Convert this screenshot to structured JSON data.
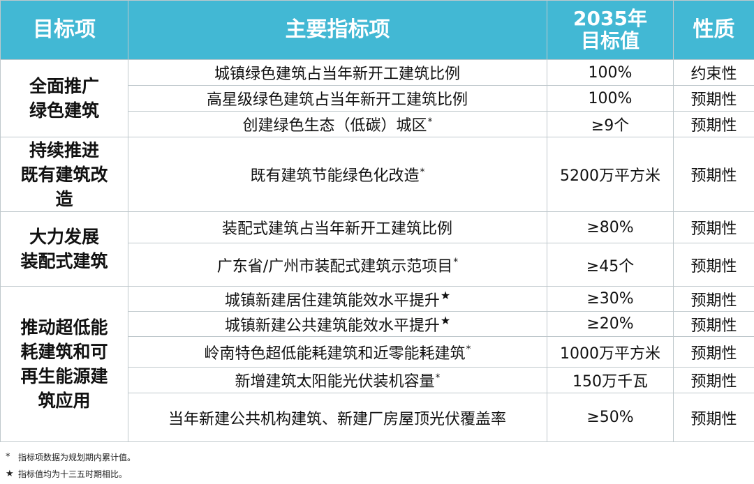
{
  "header": {
    "col1": "目标项",
    "col2": "主要指标项",
    "col3_line1": "2035年",
    "col3_line2": "目标值",
    "col4": "性质"
  },
  "groups": [
    {
      "category_lines": [
        "全面推广",
        "绿色建筑"
      ],
      "rows": [
        {
          "indicator": "城镇绿色建筑占当年新开工建筑比例",
          "mark": "",
          "value": "100%",
          "nature": "约束性"
        },
        {
          "indicator": "高星级绿色建筑占当年新开工建筑比例",
          "mark": "",
          "value": "100%",
          "nature": "预期性"
        },
        {
          "indicator": "创建绿色生态（低碳）城区",
          "mark": "*",
          "value": "≥9个",
          "nature": "预期性"
        }
      ]
    },
    {
      "category_lines": [
        "持续推进",
        "既有建筑改",
        "造"
      ],
      "rows": [
        {
          "indicator": "既有建筑节能绿色化改造",
          "mark": "*",
          "value": "5200万平方米",
          "nature": "预期性"
        }
      ]
    },
    {
      "category_lines": [
        "大力发展",
        "装配式建筑"
      ],
      "rows": [
        {
          "indicator": "装配式建筑占当年新开工建筑比例",
          "mark": "",
          "value": "≥80%",
          "nature": "预期性"
        },
        {
          "indicator": "广东省/广州市装配式建筑示范项目",
          "mark": "*",
          "value": "≥45个",
          "nature": "预期性"
        }
      ]
    },
    {
      "category_lines": [
        "推动超低能",
        "耗建筑和可",
        "再生能源建",
        "筑应用"
      ],
      "rows": [
        {
          "indicator": "城镇新建居住建筑能效水平提升",
          "mark": "★",
          "value": "≥30%",
          "nature": "预期性"
        },
        {
          "indicator": "城镇新建公共建筑能效水平提升",
          "mark": "★",
          "value": "≥20%",
          "nature": "预期性"
        },
        {
          "indicator": "岭南特色超低能耗建筑和近零能耗建筑",
          "mark": "*",
          "value": "1000万平方米",
          "nature": "预期性"
        },
        {
          "indicator": "新增建筑太阳能光伏装机容量",
          "mark": "*",
          "value": "150万千瓦",
          "nature": "预期性"
        },
        {
          "indicator": "当年新建公共机构建筑、新建厂房屋顶光伏覆盖率",
          "mark": "",
          "value": "≥50%",
          "nature": "预期性"
        }
      ]
    }
  ],
  "footnotes": [
    {
      "mark": "*",
      "text": "指标项数据为规划期内累计值。"
    },
    {
      "mark": "★",
      "text": "指标值均为十三五时期相比。"
    }
  ]
}
